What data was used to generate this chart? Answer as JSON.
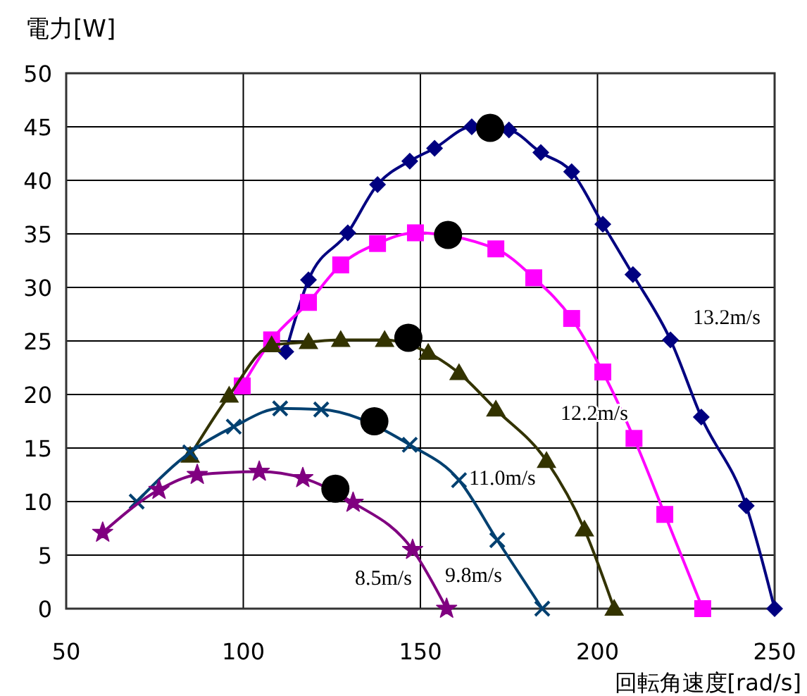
{
  "chart_data": {
    "type": "line",
    "ylabel": "電力[W]",
    "xlabel": "回転角速度[rad/s]",
    "xlim": [
      50,
      250
    ],
    "ylim": [
      0,
      50
    ],
    "xticks": [
      50,
      100,
      150,
      200,
      250
    ],
    "yticks": [
      0,
      5,
      10,
      15,
      20,
      25,
      30,
      35,
      40,
      45,
      50
    ],
    "grid": true,
    "legend": false,
    "series": [
      {
        "name": "13.2m/s",
        "color": "#000080",
        "marker": "diamond",
        "x": [
          112,
          118.4,
          129.5,
          137.9,
          147,
          154,
          164.5,
          175,
          184,
          192.7,
          201.5,
          210,
          220.6,
          229.3,
          242,
          250
        ],
        "values": [
          24,
          30.7,
          35.1,
          39.6,
          41.8,
          43,
          45,
          44.7,
          42.6,
          40.8,
          35.9,
          31.2,
          25.1,
          17.9,
          9.6,
          0
        ]
      },
      {
        "name": "12.2m/s",
        "color": "#ff00ff",
        "marker": "square",
        "x": [
          99.7,
          108,
          118.4,
          127.5,
          137.9,
          148.6,
          171.3,
          182,
          192.7,
          201.5,
          210.3,
          219,
          229.7
        ],
        "values": [
          20.8,
          25.1,
          28.6,
          32.1,
          34.1,
          35.1,
          33.6,
          30.9,
          27.1,
          22.1,
          15.9,
          8.8,
          0
        ]
      },
      {
        "name": "11.0m/s",
        "color": "#333300",
        "marker": "triangle",
        "x": [
          85,
          96,
          108,
          118.4,
          127.5,
          139.9,
          152.2,
          160.9,
          171.3,
          185.6,
          196.3,
          204.7
        ],
        "values": [
          14.3,
          19.9,
          24.6,
          24.9,
          25.1,
          25.1,
          23.9,
          22,
          18.6,
          13.8,
          7.4,
          0
        ]
      },
      {
        "name": "9.8m/s",
        "color": "#004070",
        "marker": "cross",
        "x": [
          69.9,
          85,
          97.3,
          110.4,
          122,
          147,
          160.9,
          171.7,
          184.4
        ],
        "values": [
          10,
          14.6,
          17,
          18.7,
          18.6,
          15.3,
          12,
          6.4,
          0
        ]
      },
      {
        "name": "8.5m/s",
        "color": "#800080",
        "marker": "star",
        "x": [
          60.3,
          76.2,
          87,
          104.5,
          116.8,
          131,
          147.8,
          157.4
        ],
        "values": [
          7.1,
          11.1,
          12.5,
          12.8,
          12.2,
          9.9,
          5.5,
          0
        ]
      },
      {
        "type": "scatter",
        "color": "#000000",
        "marker": "circle",
        "x": [
          169.7,
          157.8,
          146.6,
          137,
          126
        ],
        "values": [
          44.9,
          34.9,
          25.3,
          17.5,
          11.2
        ]
      }
    ]
  }
}
